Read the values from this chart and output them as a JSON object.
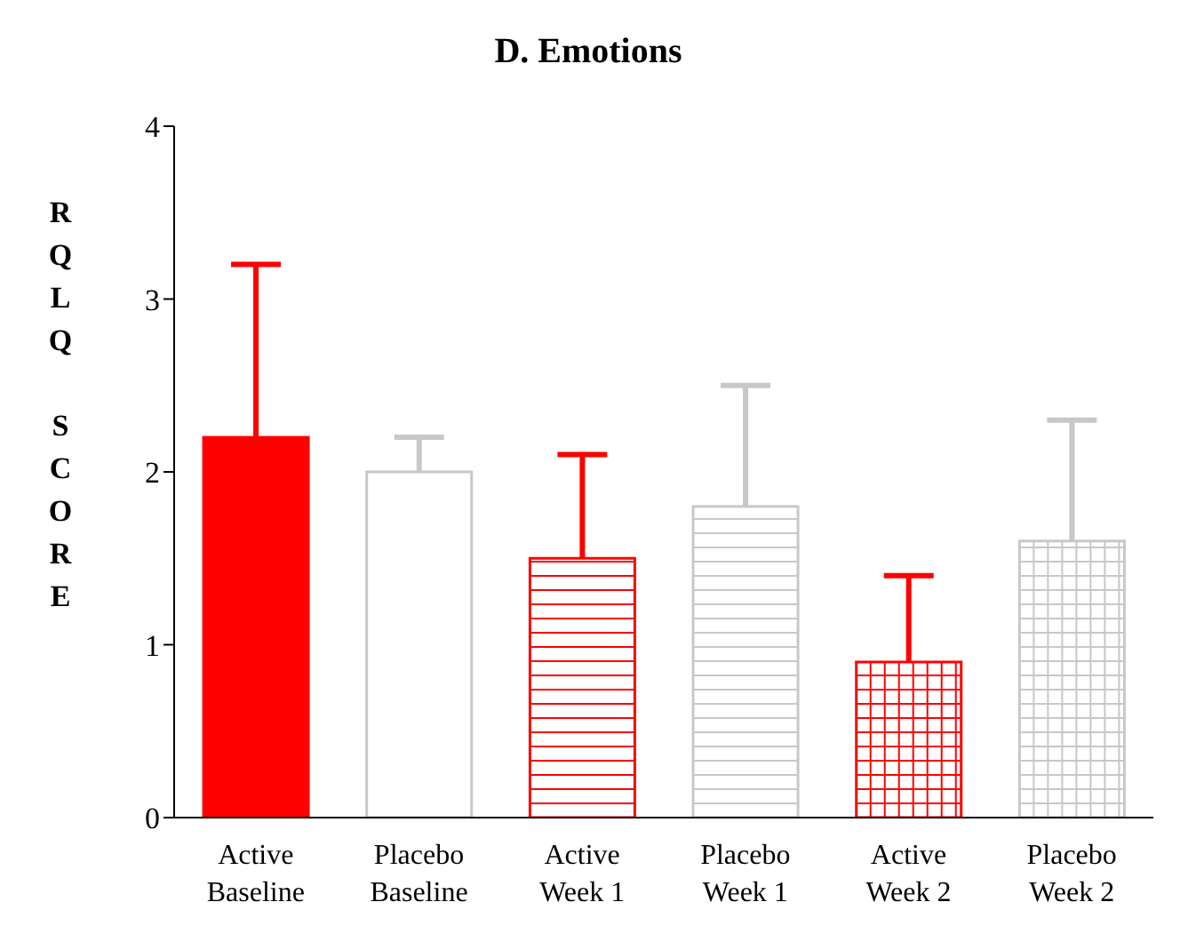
{
  "chart_data": {
    "type": "bar",
    "title": "D. Emotions",
    "ylabel": "RQLQ SCORE",
    "categories": [
      "Active Baseline",
      "Placebo Baseline",
      "Active Week 1",
      "Placebo Week 1",
      "Active Week 2",
      "Placebo Week 2"
    ],
    "values": [
      2.2,
      2.0,
      1.5,
      1.8,
      0.9,
      1.6
    ],
    "colors": [
      "#ff0000",
      "#c8c8c8",
      "#ff0000",
      "#c8c8c8",
      "#ff0000",
      "#c8c8c8"
    ],
    "errors": [
      [
        2.2,
        3.2
      ],
      [
        2.0,
        2.2
      ],
      [
        1.5,
        2.1
      ],
      [
        1.8,
        2.5
      ],
      [
        0.9,
        1.4
      ],
      [
        1.6,
        2.3
      ]
    ],
    "ylim": [
      0,
      4
    ],
    "yticks": [
      0,
      1,
      2,
      3,
      4
    ]
  }
}
